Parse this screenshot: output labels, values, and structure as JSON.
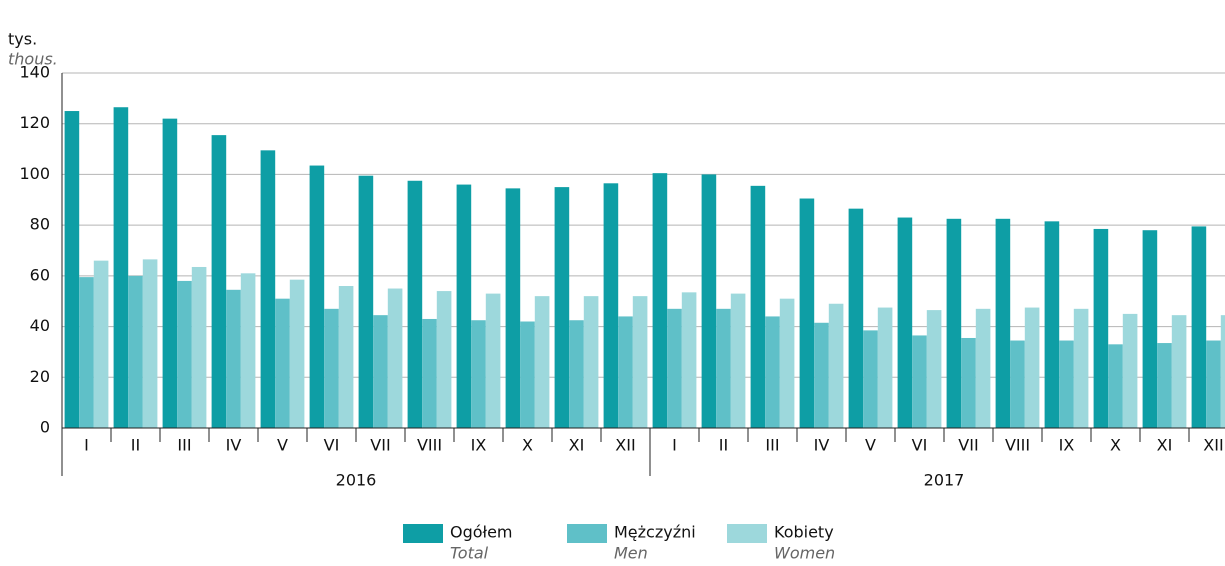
{
  "chart_data": {
    "type": "bar",
    "y_label": "tys.",
    "y_label_en": "thous.",
    "categories": [
      "I",
      "II",
      "III",
      "IV",
      "V",
      "VI",
      "VII",
      "VIII",
      "IX",
      "X",
      "XI",
      "XII",
      "I",
      "II",
      "III",
      "IV",
      "V",
      "VI",
      "VII",
      "VIII",
      "IX",
      "X",
      "XI",
      "XII"
    ],
    "years": [
      "2016",
      "2017"
    ],
    "series": [
      {
        "name": "Ogółem",
        "name_en": "Total",
        "color": "#0e9ea5",
        "values": [
          125,
          126.5,
          122,
          115.5,
          109.5,
          103.5,
          99.5,
          97.5,
          96,
          94.5,
          95,
          96.5,
          100.5,
          100,
          95.5,
          90.5,
          86.5,
          83,
          82.5,
          82.5,
          81.5,
          78.5,
          78,
          79.5
        ]
      },
      {
        "name": "Mężczyźni",
        "name_en": "Men",
        "color": "#5fc0c8",
        "values": [
          59.5,
          60,
          58,
          54.5,
          51,
          47,
          44.5,
          43,
          42.5,
          42,
          42.5,
          44,
          47,
          47,
          44,
          41.5,
          38.5,
          36.5,
          35.5,
          34.5,
          34.5,
          33,
          33.5,
          34.5
        ]
      },
      {
        "name": "Kobiety",
        "name_en": "Women",
        "color": "#9dd8dc",
        "values": [
          66,
          66.5,
          63.5,
          61,
          58.5,
          56,
          55,
          54,
          53,
          52,
          52,
          52,
          53.5,
          53,
          51,
          49,
          47.5,
          46.5,
          47,
          47.5,
          47,
          45,
          44.5,
          44.5
        ]
      }
    ],
    "ylim": [
      0,
      140
    ],
    "yticks": [
      0,
      20,
      40,
      60,
      80,
      100,
      120,
      140
    ],
    "grid": true,
    "legend": "bottom"
  }
}
